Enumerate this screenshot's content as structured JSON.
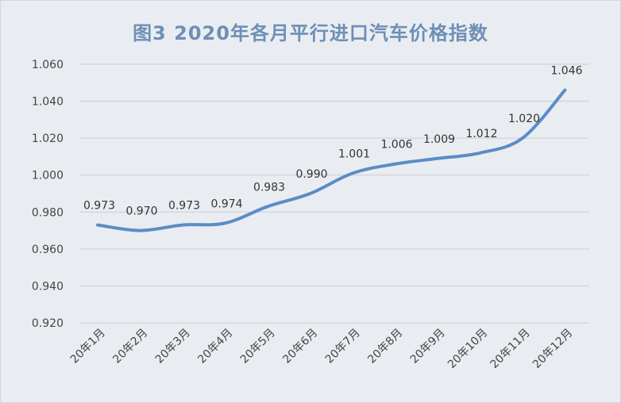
{
  "chart_data": {
    "type": "line",
    "title": "图3 2020年各月平行进口汽车价格指数",
    "categories": [
      "20年1月",
      "20年2月",
      "20年3月",
      "20年4月",
      "20年5月",
      "20年6月",
      "20年7月",
      "20年8月",
      "20年9月",
      "20年10月",
      "20年11月",
      "20年12月"
    ],
    "values": [
      0.973,
      0.97,
      0.973,
      0.974,
      0.983,
      0.99,
      1.001,
      1.006,
      1.009,
      1.012,
      1.02,
      1.046
    ],
    "data_labels": [
      "0.973",
      "0.970",
      "0.973",
      "0.974",
      "0.983",
      "0.990",
      "1.001",
      "1.006",
      "1.009",
      "1.012",
      "1.020",
      "1.046"
    ],
    "ylim": [
      0.92,
      1.06
    ],
    "yticks": [
      "0.920",
      "0.940",
      "0.960",
      "0.980",
      "1.000",
      "1.020",
      "1.040",
      "1.060"
    ],
    "grid": true,
    "line_color": "#5b8cc6"
  }
}
